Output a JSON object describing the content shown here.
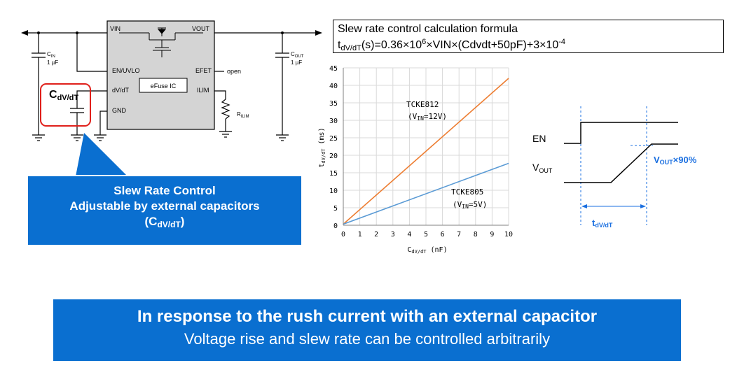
{
  "circuit": {
    "ic_pin_vin": "VIN",
    "ic_pin_vout": "VOUT",
    "ic_pin_en": "EN/UVLO",
    "ic_pin_dvdt": "dV/dT",
    "ic_pin_gnd": "GND",
    "ic_pin_efet": "EFET",
    "ic_pin_ilim": "ILIM",
    "ic_name": "eFuse IC",
    "efet_label": "open",
    "cin_label": "C",
    "cin_sub": "IN",
    "cin_value": "1 µF",
    "cout_label": "C",
    "cout_sub": "OUT",
    "cout_value": "1 µF",
    "rilim_label": "R",
    "rilim_sub": "ILIM",
    "cdvdt_label": "C",
    "cdvdt_sub": "dV/dT"
  },
  "callout": {
    "line1": "Slew Rate Control",
    "line2": "Adjustable by external capacitors",
    "line3_open": "(C",
    "line3_sub": "dV/dT",
    "line3_close": ")"
  },
  "formula": {
    "title": "Slew rate control calculation formula",
    "lhs": "t",
    "lhs_sub": "dV/dT",
    "eq1": "(s)=0.36×10",
    "exp1": "6",
    "eq2": "×VIN×(Cdvdt+50pF)+3×10",
    "exp2": "-4"
  },
  "chart_data": {
    "type": "line",
    "x": [
      0,
      10
    ],
    "xlim": [
      0,
      10
    ],
    "ylim": [
      0,
      45
    ],
    "xticks": [
      "0",
      "1",
      "2",
      "3",
      "4",
      "5",
      "6",
      "7",
      "8",
      "9",
      "10"
    ],
    "yticks": [
      "0",
      "5",
      "10",
      "15",
      "20",
      "25",
      "30",
      "35",
      "40",
      "45"
    ],
    "xlabel_main": "C",
    "xlabel_sub": "dV/dT",
    "xlabel_unit": " (nF)",
    "ylabel_main": "t",
    "ylabel_sub": "dV/dT",
    "ylabel_unit": " (ms)",
    "grid": true,
    "series": [
      {
        "name": "TCKE812",
        "condition_main": "(V",
        "condition_sub": "IN",
        "condition_rest": "=12V)",
        "color": "#ed7d31",
        "values": [
          0.3,
          42.0
        ]
      },
      {
        "name": "TCKE805",
        "condition_main": "(V",
        "condition_sub": "IN",
        "condition_rest": "=5V)",
        "color": "#5b9bd5",
        "values": [
          0.3,
          17.7
        ]
      }
    ]
  },
  "timing": {
    "en_label": "EN",
    "vout_label": "V",
    "vout_sub": "OUT",
    "marker_main": "V",
    "marker_sub": "OUT",
    "marker_rest": "×90%",
    "tdvdt_main": "t",
    "tdvdt_sub": "dV/dT",
    "accent_color": "#1a6fe0"
  },
  "banner": {
    "line1": "In response to the rush current with an external capacitor",
    "line2": "Voltage rise and slew rate can be controlled arbitrarily"
  }
}
